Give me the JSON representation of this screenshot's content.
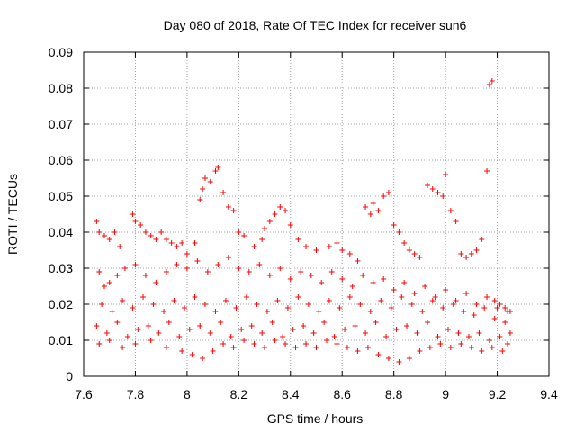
{
  "colors": {
    "series": "#ff0000",
    "grid": "#a0a0a0",
    "axis": "#000000"
  },
  "chart_data": {
    "type": "scatter",
    "title": "Day 080 of 2018, Rate Of TEC Index for receiver sun6",
    "xlabel": "GPS time / hours",
    "ylabel": "ROTI / TECUs",
    "xlim": [
      7.6,
      9.4
    ],
    "ylim": [
      0,
      0.09
    ],
    "xticks": [
      "7.6",
      "7.8",
      "8",
      "8.2",
      "8.4",
      "8.6",
      "8.8",
      "9",
      "9.2",
      "9.4"
    ],
    "yticks": [
      "0",
      "0.01",
      "0.02",
      "0.03",
      "0.04",
      "0.05",
      "0.06",
      "0.07",
      "0.08",
      "0.09"
    ],
    "grid": true,
    "marker": "+",
    "series": [
      {
        "name": "ROTI",
        "points": [
          [
            7.65,
            0.043
          ],
          [
            7.66,
            0.04
          ],
          [
            7.68,
            0.039
          ],
          [
            7.7,
            0.038
          ],
          [
            7.72,
            0.04
          ],
          [
            7.74,
            0.036
          ],
          [
            7.79,
            0.045
          ],
          [
            7.8,
            0.043
          ],
          [
            7.82,
            0.042
          ],
          [
            7.84,
            0.04
          ],
          [
            7.86,
            0.039
          ],
          [
            7.88,
            0.038
          ],
          [
            7.9,
            0.04
          ],
          [
            7.92,
            0.038
          ],
          [
            7.94,
            0.037
          ],
          [
            7.96,
            0.036
          ],
          [
            7.98,
            0.037
          ],
          [
            8.0,
            0.034
          ],
          [
            8.03,
            0.037
          ],
          [
            8.05,
            0.049
          ],
          [
            8.06,
            0.052
          ],
          [
            8.07,
            0.055
          ],
          [
            8.09,
            0.054
          ],
          [
            8.11,
            0.057
          ],
          [
            8.12,
            0.058
          ],
          [
            8.14,
            0.051
          ],
          [
            8.16,
            0.047
          ],
          [
            8.18,
            0.046
          ],
          [
            8.2,
            0.04
          ],
          [
            8.22,
            0.039
          ],
          [
            8.26,
            0.036
          ],
          [
            8.29,
            0.038
          ],
          [
            8.3,
            0.041
          ],
          [
            8.32,
            0.043
          ],
          [
            8.34,
            0.045
          ],
          [
            8.36,
            0.047
          ],
          [
            8.38,
            0.046
          ],
          [
            8.4,
            0.042
          ],
          [
            8.43,
            0.038
          ],
          [
            8.46,
            0.036
          ],
          [
            8.5,
            0.035
          ],
          [
            8.55,
            0.036
          ],
          [
            8.58,
            0.037
          ],
          [
            8.6,
            0.035
          ],
          [
            8.63,
            0.034
          ],
          [
            8.66,
            0.032
          ],
          [
            8.69,
            0.047
          ],
          [
            8.71,
            0.045
          ],
          [
            8.72,
            0.048
          ],
          [
            8.74,
            0.046
          ],
          [
            8.76,
            0.05
          ],
          [
            8.78,
            0.051
          ],
          [
            8.8,
            0.042
          ],
          [
            8.82,
            0.04
          ],
          [
            8.84,
            0.037
          ],
          [
            8.86,
            0.035
          ],
          [
            8.88,
            0.034
          ],
          [
            8.9,
            0.033
          ],
          [
            8.93,
            0.053
          ],
          [
            8.95,
            0.052
          ],
          [
            8.97,
            0.051
          ],
          [
            8.99,
            0.05
          ],
          [
            9.0,
            0.056
          ],
          [
            9.02,
            0.046
          ],
          [
            9.04,
            0.043
          ],
          [
            9.06,
            0.034
          ],
          [
            9.08,
            0.033
          ],
          [
            9.1,
            0.034
          ],
          [
            9.12,
            0.035
          ],
          [
            9.14,
            0.038
          ],
          [
            9.16,
            0.057
          ],
          [
            9.17,
            0.081
          ],
          [
            9.18,
            0.082
          ],
          [
            9.19,
            0.021
          ],
          [
            9.21,
            0.02
          ],
          [
            9.23,
            0.019
          ],
          [
            9.25,
            0.018
          ],
          [
            7.66,
            0.029
          ],
          [
            7.68,
            0.025
          ],
          [
            7.7,
            0.026
          ],
          [
            7.73,
            0.028
          ],
          [
            7.76,
            0.03
          ],
          [
            7.8,
            0.031
          ],
          [
            7.84,
            0.028
          ],
          [
            7.88,
            0.026
          ],
          [
            7.92,
            0.029
          ],
          [
            7.96,
            0.031
          ],
          [
            8.0,
            0.03
          ],
          [
            8.04,
            0.032
          ],
          [
            8.08,
            0.029
          ],
          [
            8.12,
            0.031
          ],
          [
            8.16,
            0.033
          ],
          [
            8.2,
            0.03
          ],
          [
            8.24,
            0.029
          ],
          [
            8.28,
            0.031
          ],
          [
            8.32,
            0.028
          ],
          [
            8.36,
            0.03
          ],
          [
            8.4,
            0.027
          ],
          [
            8.44,
            0.029
          ],
          [
            8.48,
            0.028
          ],
          [
            8.52,
            0.026
          ],
          [
            8.56,
            0.029
          ],
          [
            8.6,
            0.027
          ],
          [
            8.64,
            0.025
          ],
          [
            8.68,
            0.028
          ],
          [
            8.72,
            0.026
          ],
          [
            8.76,
            0.027
          ],
          [
            8.8,
            0.024
          ],
          [
            8.84,
            0.026
          ],
          [
            8.88,
            0.023
          ],
          [
            8.92,
            0.025
          ],
          [
            8.96,
            0.022
          ],
          [
            9.0,
            0.024
          ],
          [
            9.04,
            0.021
          ],
          [
            9.08,
            0.023
          ],
          [
            9.12,
            0.02
          ],
          [
            9.16,
            0.022
          ],
          [
            9.2,
            0.019
          ],
          [
            9.24,
            0.018
          ],
          [
            7.67,
            0.02
          ],
          [
            7.71,
            0.018
          ],
          [
            7.75,
            0.021
          ],
          [
            7.79,
            0.019
          ],
          [
            7.83,
            0.022
          ],
          [
            7.87,
            0.02
          ],
          [
            7.91,
            0.018
          ],
          [
            7.95,
            0.021
          ],
          [
            7.99,
            0.019
          ],
          [
            8.03,
            0.022
          ],
          [
            8.07,
            0.02
          ],
          [
            8.11,
            0.018
          ],
          [
            8.15,
            0.021
          ],
          [
            8.19,
            0.019
          ],
          [
            8.23,
            0.022
          ],
          [
            8.27,
            0.02
          ],
          [
            8.31,
            0.018
          ],
          [
            8.35,
            0.021
          ],
          [
            8.39,
            0.019
          ],
          [
            8.43,
            0.022
          ],
          [
            8.47,
            0.02
          ],
          [
            8.51,
            0.018
          ],
          [
            8.55,
            0.021
          ],
          [
            8.59,
            0.019
          ],
          [
            8.63,
            0.022
          ],
          [
            8.67,
            0.02
          ],
          [
            8.71,
            0.018
          ],
          [
            8.75,
            0.021
          ],
          [
            8.79,
            0.019
          ],
          [
            8.83,
            0.022
          ],
          [
            8.87,
            0.02
          ],
          [
            8.91,
            0.018
          ],
          [
            8.95,
            0.021
          ],
          [
            8.99,
            0.019
          ],
          [
            9.03,
            0.02
          ],
          [
            9.07,
            0.018
          ],
          [
            9.11,
            0.017
          ],
          [
            9.15,
            0.019
          ],
          [
            9.19,
            0.016
          ],
          [
            9.23,
            0.015
          ],
          [
            7.65,
            0.014
          ],
          [
            7.69,
            0.012
          ],
          [
            7.73,
            0.015
          ],
          [
            7.77,
            0.011
          ],
          [
            7.81,
            0.013
          ],
          [
            7.85,
            0.014
          ],
          [
            7.89,
            0.012
          ],
          [
            7.93,
            0.015
          ],
          [
            7.97,
            0.011
          ],
          [
            8.01,
            0.013
          ],
          [
            8.05,
            0.014
          ],
          [
            8.09,
            0.012
          ],
          [
            8.13,
            0.015
          ],
          [
            8.17,
            0.011
          ],
          [
            8.21,
            0.013
          ],
          [
            8.25,
            0.014
          ],
          [
            8.29,
            0.012
          ],
          [
            8.33,
            0.015
          ],
          [
            8.37,
            0.011
          ],
          [
            8.41,
            0.013
          ],
          [
            8.45,
            0.014
          ],
          [
            8.49,
            0.012
          ],
          [
            8.53,
            0.015
          ],
          [
            8.57,
            0.011
          ],
          [
            8.61,
            0.013
          ],
          [
            8.65,
            0.014
          ],
          [
            8.69,
            0.012
          ],
          [
            8.73,
            0.015
          ],
          [
            8.77,
            0.011
          ],
          [
            8.81,
            0.013
          ],
          [
            8.85,
            0.014
          ],
          [
            8.89,
            0.012
          ],
          [
            8.93,
            0.015
          ],
          [
            8.97,
            0.011
          ],
          [
            9.01,
            0.013
          ],
          [
            9.05,
            0.012
          ],
          [
            9.09,
            0.011
          ],
          [
            9.13,
            0.012
          ],
          [
            9.17,
            0.01
          ],
          [
            9.21,
            0.011
          ],
          [
            9.25,
            0.012
          ],
          [
            7.66,
            0.009
          ],
          [
            7.7,
            0.01
          ],
          [
            7.75,
            0.008
          ],
          [
            7.8,
            0.009
          ],
          [
            7.86,
            0.01
          ],
          [
            7.92,
            0.008
          ],
          [
            7.98,
            0.007
          ],
          [
            8.02,
            0.006
          ],
          [
            8.06,
            0.005
          ],
          [
            8.1,
            0.007
          ],
          [
            8.14,
            0.009
          ],
          [
            8.18,
            0.008
          ],
          [
            8.22,
            0.01
          ],
          [
            8.26,
            0.009
          ],
          [
            8.3,
            0.008
          ],
          [
            8.34,
            0.01
          ],
          [
            8.38,
            0.009
          ],
          [
            8.42,
            0.008
          ],
          [
            8.46,
            0.009
          ],
          [
            8.5,
            0.008
          ],
          [
            8.54,
            0.01
          ],
          [
            8.58,
            0.009
          ],
          [
            8.62,
            0.008
          ],
          [
            8.66,
            0.007
          ],
          [
            8.7,
            0.008
          ],
          [
            8.74,
            0.006
          ],
          [
            8.78,
            0.005
          ],
          [
            8.82,
            0.004
          ],
          [
            8.86,
            0.005
          ],
          [
            8.9,
            0.007
          ],
          [
            8.94,
            0.008
          ],
          [
            8.98,
            0.009
          ],
          [
            9.02,
            0.008
          ],
          [
            9.06,
            0.009
          ],
          [
            9.1,
            0.008
          ],
          [
            9.14,
            0.007
          ],
          [
            9.18,
            0.008
          ],
          [
            9.22,
            0.007
          ],
          [
            9.24,
            0.009
          ]
        ]
      }
    ]
  }
}
